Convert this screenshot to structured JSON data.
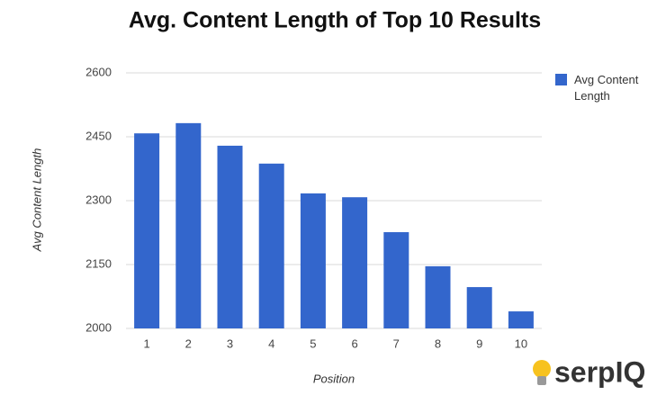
{
  "chart_data": {
    "type": "bar",
    "title": "Avg. Content Length of Top 10 Results",
    "x_label": "Position",
    "y_label": "Avg Content Length",
    "logo": "serpIQ",
    "categories": [
      "1",
      "2",
      "3",
      "4",
      "5",
      "6",
      "7",
      "8",
      "9",
      "10"
    ],
    "series": [
      {
        "name": "Avg Content Length",
        "color": "#3366cc",
        "values": [
          2458,
          2482,
          2429,
          2387,
          2317,
          2308,
          2226,
          2146,
          2097,
          2040
        ]
      }
    ],
    "ylim": [
      2000,
      2600
    ],
    "yticks": [
      2000,
      2150,
      2300,
      2450,
      2600
    ],
    "grid": true,
    "legend": "right"
  }
}
